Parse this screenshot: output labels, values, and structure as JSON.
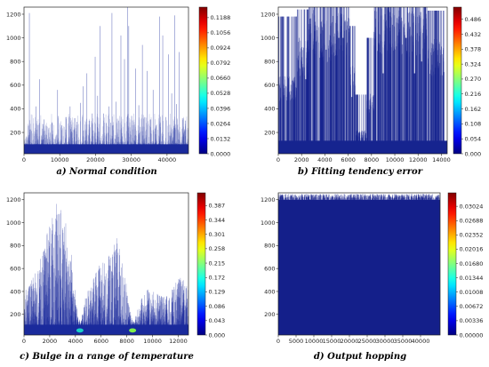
{
  "chart_data": [
    {
      "type": "heatmap",
      "caption": "a) Normal condition",
      "xlim": [
        0,
        46000
      ],
      "ylim": [
        20,
        1260
      ],
      "x_ticks": [
        0,
        10000,
        20000,
        30000,
        40000
      ],
      "x_tick_labels": [
        "0",
        "10000",
        "20000",
        "30000",
        "40000"
      ],
      "y_ticks": [
        200,
        400,
        600,
        800,
        1000,
        1200
      ],
      "y_tick_labels": [
        "200",
        "400",
        "600",
        "800",
        "1000",
        "1200"
      ],
      "colorbar_ticks": [
        0.0,
        0.0132,
        0.0264,
        0.0396,
        0.0528,
        0.066,
        0.0792,
        0.0924,
        0.1056,
        0.1188
      ],
      "colorbar_labels": [
        "0.0000",
        "0.0132",
        "0.0264",
        "0.0396",
        "0.0528",
        "0.0660",
        "0.0792",
        "0.0924",
        "0.1056",
        "0.1188"
      ],
      "colorbar_range": [
        0,
        0.128
      ],
      "colormap": "jet",
      "band": {
        "base": 60,
        "top": 100,
        "color": "#1a2a9c"
      },
      "spikes": [
        [
          1500,
          1210
        ],
        [
          3300,
          420
        ],
        [
          4300,
          650
        ],
        [
          5600,
          310
        ],
        [
          7800,
          280
        ],
        [
          9400,
          560
        ],
        [
          10500,
          260
        ],
        [
          11800,
          330
        ],
        [
          12900,
          420
        ],
        [
          14200,
          320
        ],
        [
          14800,
          290
        ],
        [
          15800,
          450
        ],
        [
          16600,
          590
        ],
        [
          17600,
          700
        ],
        [
          18200,
          300
        ],
        [
          19100,
          360
        ],
        [
          19900,
          840
        ],
        [
          20600,
          510
        ],
        [
          21300,
          1100
        ],
        [
          22300,
          360
        ],
        [
          23000,
          280
        ],
        [
          23700,
          420
        ],
        [
          24600,
          1210
        ],
        [
          25800,
          460
        ],
        [
          26400,
          300
        ],
        [
          27100,
          1020
        ],
        [
          28100,
          820
        ],
        [
          28900,
          1260
        ],
        [
          29300,
          1100
        ],
        [
          30100,
          340
        ],
        [
          31200,
          740
        ],
        [
          32100,
          430
        ],
        [
          33100,
          940
        ],
        [
          33800,
          330
        ],
        [
          34500,
          720
        ],
        [
          35400,
          310
        ],
        [
          36100,
          560
        ],
        [
          37000,
          260
        ],
        [
          37900,
          1180
        ],
        [
          38800,
          1020
        ],
        [
          39700,
          330
        ],
        [
          40400,
          860
        ],
        [
          41300,
          530
        ],
        [
          42100,
          1190
        ],
        [
          42700,
          440
        ],
        [
          43400,
          880
        ],
        [
          44300,
          320
        ],
        [
          45200,
          300
        ]
      ]
    },
    {
      "type": "heatmap",
      "caption": "b) Fitting tendency error",
      "xlim": [
        0,
        14500
      ],
      "ylim": [
        20,
        1260
      ],
      "x_ticks": [
        0,
        2000,
        4000,
        6000,
        8000,
        10000,
        12000,
        14000
      ],
      "x_tick_labels": [
        "0",
        "2000",
        "4000",
        "6000",
        "8000",
        "10000",
        "12000",
        "14000"
      ],
      "y_ticks": [
        200,
        400,
        600,
        800,
        1000,
        1200
      ],
      "y_tick_labels": [
        "200",
        "400",
        "600",
        "800",
        "1000",
        "1200"
      ],
      "colorbar_ticks": [
        0.0,
        0.054,
        0.108,
        0.162,
        0.216,
        0.27,
        0.324,
        0.378,
        0.432,
        0.486
      ],
      "colorbar_labels": [
        "0.000",
        "0.054",
        "0.108",
        "0.162",
        "0.216",
        "0.270",
        "0.324",
        "0.378",
        "0.432",
        "0.486"
      ],
      "colorbar_range": [
        0,
        0.53
      ],
      "colormap": "jet",
      "band": {
        "base": 60,
        "top": 130,
        "color": "#16248f"
      },
      "dense_regions": [
        {
          "x0": 0,
          "x1": 1600,
          "level": 620,
          "top": 1180
        },
        {
          "x0": 1600,
          "x1": 2600,
          "level": 900,
          "top": 1240
        },
        {
          "x0": 2600,
          "x1": 3500,
          "level": 1150,
          "top": 1260
        },
        {
          "x0": 3500,
          "x1": 4600,
          "level": 1050,
          "top": 1260
        },
        {
          "x0": 4600,
          "x1": 6100,
          "level": 1100,
          "top": 1260
        },
        {
          "x0": 6100,
          "x1": 6600,
          "level": 700,
          "top": 1100
        },
        {
          "x0": 6600,
          "x1": 7600,
          "level": 200,
          "top": 520
        },
        {
          "x0": 7600,
          "x1": 8200,
          "level": 480,
          "top": 1000
        },
        {
          "x0": 8200,
          "x1": 10200,
          "level": 1150,
          "top": 1260
        },
        {
          "x0": 10200,
          "x1": 12800,
          "level": 1120,
          "top": 1260
        },
        {
          "x0": 12800,
          "x1": 14300,
          "level": 900,
          "top": 1230
        }
      ],
      "gaps": [
        [
          1830,
          1000
        ],
        [
          2350,
          650
        ],
        [
          3430,
          80
        ],
        [
          4100,
          900
        ],
        [
          5200,
          1000
        ],
        [
          5550,
          1000
        ],
        [
          6300,
          500
        ],
        [
          9000,
          700
        ],
        [
          10950,
          1000
        ],
        [
          11700,
          700
        ],
        [
          12300,
          800
        ]
      ]
    },
    {
      "type": "heatmap",
      "caption": "c) Bulge in a range of temperature",
      "xlim": [
        0,
        12800
      ],
      "ylim": [
        20,
        1260
      ],
      "x_ticks": [
        0,
        2000,
        4000,
        6000,
        8000,
        10000,
        12000
      ],
      "x_tick_labels": [
        "0",
        "2000",
        "4000",
        "6000",
        "8000",
        "10000",
        "12000"
      ],
      "y_ticks": [
        200,
        400,
        600,
        800,
        1000,
        1200
      ],
      "y_tick_labels": [
        "200",
        "400",
        "600",
        "800",
        "1000",
        "1200"
      ],
      "colorbar_ticks": [
        0.0,
        0.043,
        0.086,
        0.129,
        0.172,
        0.215,
        0.258,
        0.301,
        0.344,
        0.387
      ],
      "colorbar_labels": [
        "0.000",
        "0.043",
        "0.086",
        "0.129",
        "0.172",
        "0.215",
        "0.258",
        "0.301",
        "0.344",
        "0.387"
      ],
      "colorbar_range": [
        0,
        0.425
      ],
      "colormap": "jet",
      "band": {
        "base": 60,
        "top": 110,
        "color": "#1a2a9c"
      },
      "envelope": [
        [
          0,
          380
        ],
        [
          600,
          480
        ],
        [
          1200,
          680
        ],
        [
          1800,
          880
        ],
        [
          2300,
          1050
        ],
        [
          2700,
          1180
        ],
        [
          3000,
          1240
        ],
        [
          3300,
          1100
        ],
        [
          3700,
          700
        ],
        [
          4100,
          250
        ],
        [
          4400,
          120
        ],
        [
          4700,
          300
        ],
        [
          5200,
          520
        ],
        [
          5800,
          620
        ],
        [
          6300,
          640
        ],
        [
          6800,
          760
        ],
        [
          7300,
          850
        ],
        [
          7800,
          600
        ],
        [
          8200,
          250
        ],
        [
          8500,
          120
        ],
        [
          8900,
          260
        ],
        [
          9500,
          420
        ],
        [
          10200,
          380
        ],
        [
          10900,
          340
        ],
        [
          11500,
          420
        ],
        [
          12000,
          520
        ],
        [
          12500,
          480
        ],
        [
          12800,
          400
        ]
      ],
      "hot_spots": [
        {
          "x": 4350,
          "y": 60,
          "color": "#19d2c6"
        },
        {
          "x": 8450,
          "y": 60,
          "color": "#7ff04a"
        }
      ]
    },
    {
      "type": "heatmap",
      "caption": "d) Output hopping",
      "xlim": [
        0,
        45500
      ],
      "ylim": [
        20,
        1260
      ],
      "x_ticks": [
        0,
        5000,
        10000,
        15000,
        20000,
        25000,
        30000,
        35000,
        40000
      ],
      "x_tick_labels": [
        "0",
        "5000",
        "10000",
        "15000",
        "20000",
        "25000",
        "30000",
        "35000",
        "40000"
      ],
      "y_ticks": [
        200,
        400,
        600,
        800,
        1000,
        1200
      ],
      "y_tick_labels": [
        "200",
        "400",
        "600",
        "800",
        "1000",
        "1200"
      ],
      "colorbar_ticks": [
        0.0,
        0.00336,
        0.00672,
        0.01008,
        0.01344,
        0.0168,
        0.02016,
        0.02352,
        0.02688,
        0.03024
      ],
      "colorbar_labels": [
        "0.00000",
        "0.00336",
        "0.00672",
        "0.01008",
        "0.01344",
        "0.01680",
        "0.02016",
        "0.02352",
        "0.02688",
        "0.03024"
      ],
      "colorbar_range": [
        0,
        0.0334
      ],
      "colormap": "jet",
      "band": {
        "base": 20,
        "top": 1200,
        "color": "#141f8a"
      },
      "fill_top": 1250
    }
  ]
}
